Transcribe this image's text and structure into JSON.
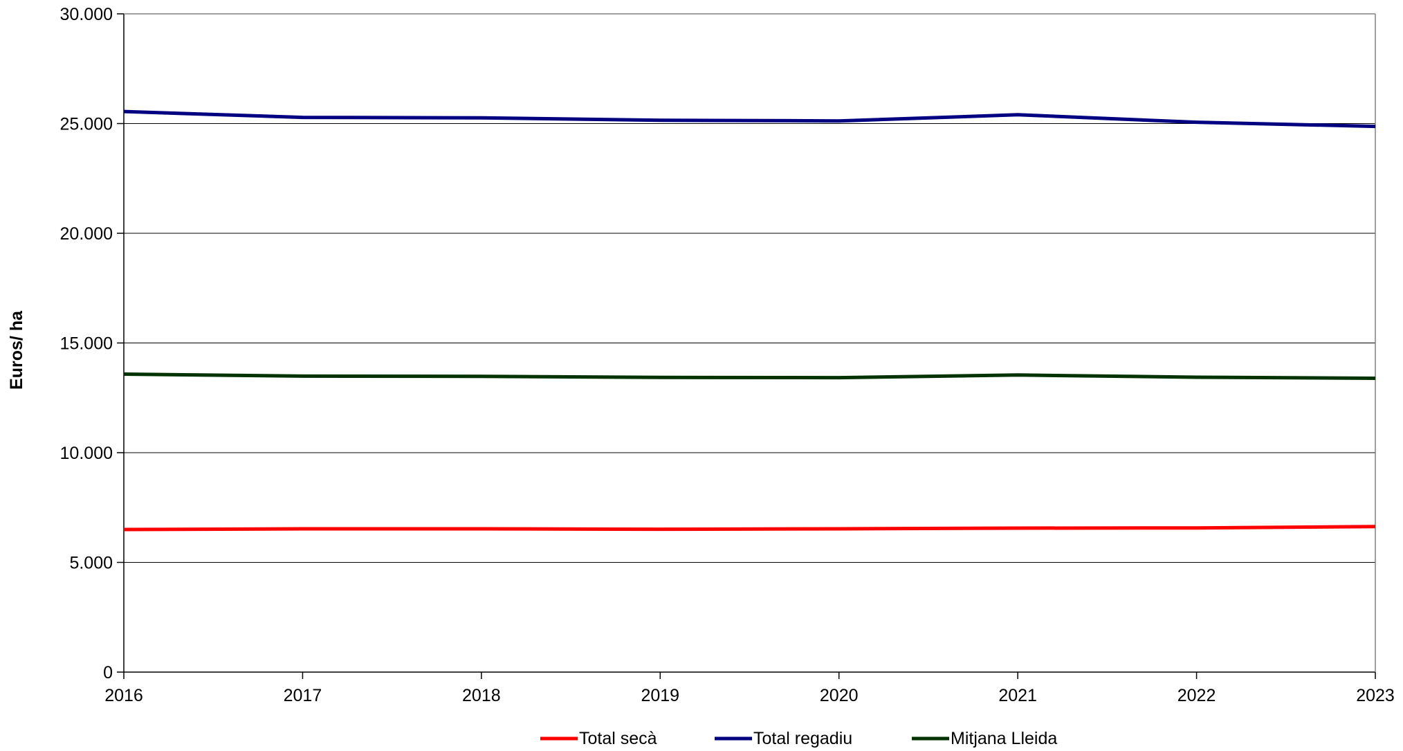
{
  "chart_data": {
    "type": "line",
    "title": "",
    "xlabel": "",
    "ylabel": "Euros/ ha",
    "x": [
      "2016",
      "2017",
      "2018",
      "2019",
      "2020",
      "2021",
      "2022",
      "2023"
    ],
    "ylim": [
      0,
      30000
    ],
    "yticks": [
      0,
      5000,
      10000,
      15000,
      20000,
      25000,
      30000
    ],
    "ytick_labels": [
      "0",
      "5.000",
      "10.000",
      "15.000",
      "20.000",
      "25.000",
      "30.000"
    ],
    "grid": true,
    "legend_position": "bottom",
    "series": [
      {
        "name": "Total secà",
        "color": "#ff0000",
        "values": [
          6500,
          6530,
          6530,
          6510,
          6530,
          6560,
          6570,
          6630
        ]
      },
      {
        "name": "Total regadiu",
        "color": "#000080",
        "values": [
          25550,
          25280,
          25260,
          25150,
          25120,
          25400,
          25060,
          24870
        ]
      },
      {
        "name": "Mitjana Lleida",
        "color": "#003300",
        "values": [
          13580,
          13490,
          13480,
          13430,
          13420,
          13540,
          13440,
          13390
        ]
      }
    ]
  }
}
